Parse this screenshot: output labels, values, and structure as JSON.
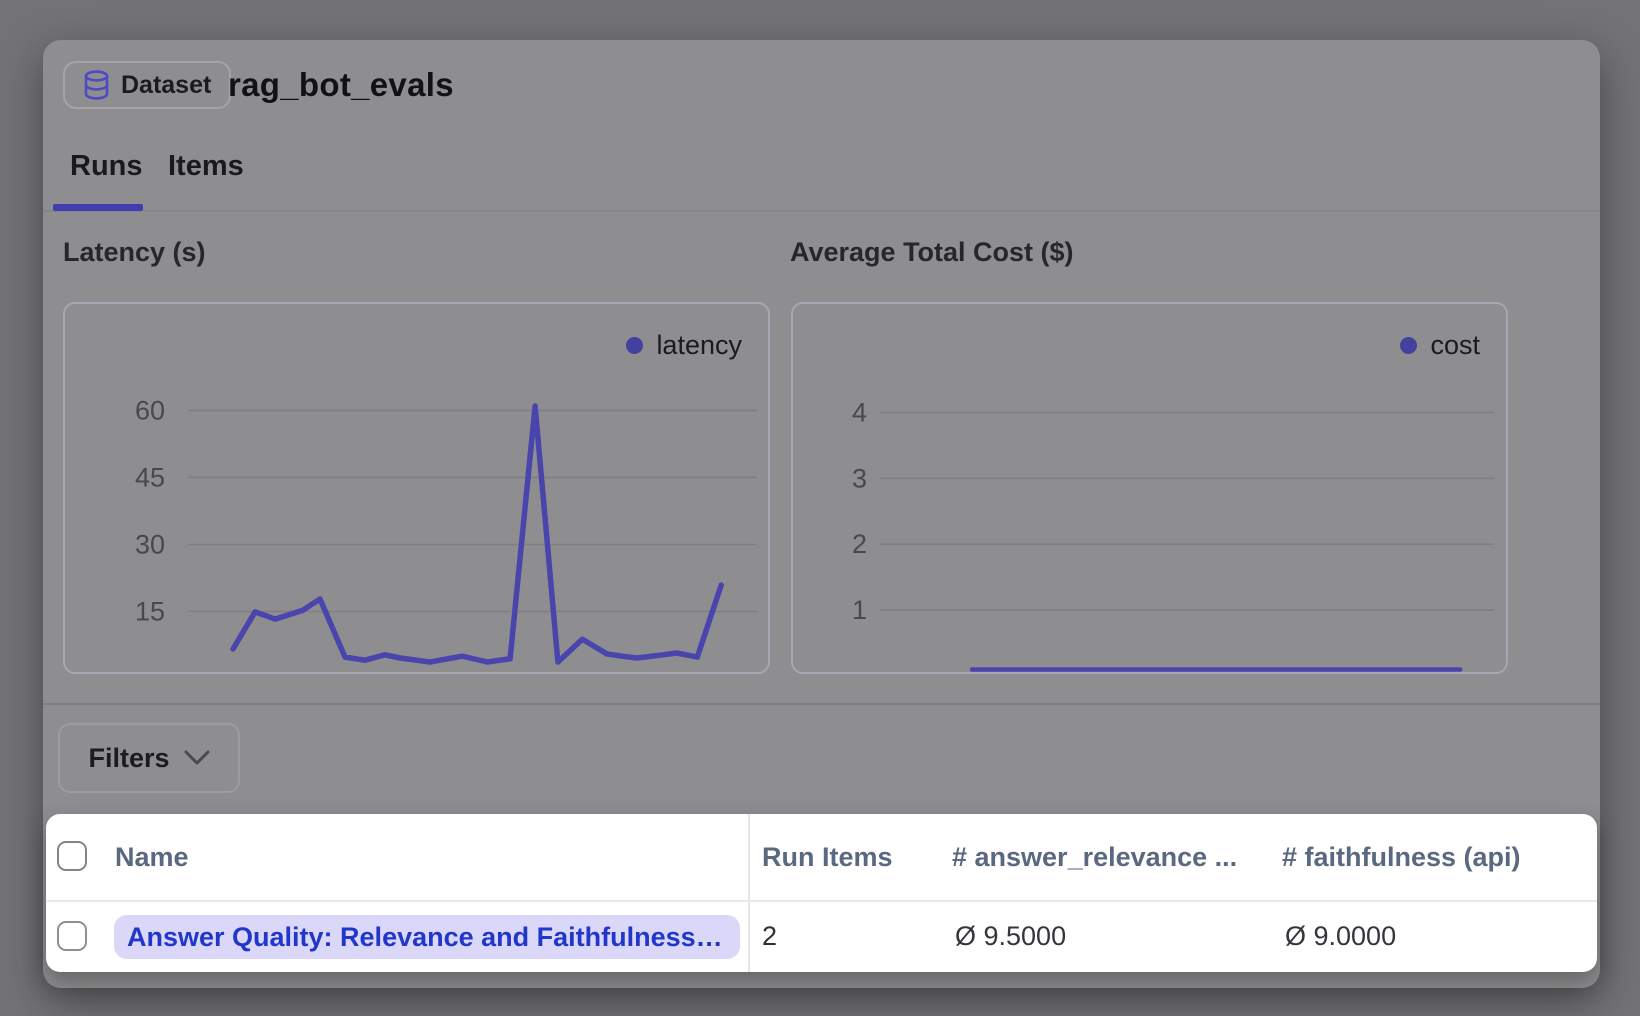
{
  "header": {
    "badge": {
      "label": "Dataset",
      "icon": "database-icon"
    },
    "title": "rag_bot_evals"
  },
  "tabs": [
    {
      "label": "Runs",
      "active": true
    },
    {
      "label": "Items",
      "active": false
    }
  ],
  "filters": {
    "label": "Filters",
    "icon": "chevron-down-icon"
  },
  "table": {
    "columns": [
      "Name",
      "Run Items",
      "# answer_relevance ...",
      "# faithfulness (api)"
    ],
    "rows": [
      {
        "name": "Answer Quality: Relevance and Faithfulness - ...",
        "run_items": "2",
        "answer_relevance": "Ø 9.5000",
        "faithfulness": "Ø 9.0000"
      }
    ]
  },
  "colors": {
    "accent_indigo": "#413daf",
    "line_indigo": "#4945ad",
    "legend_dot": "#43409f",
    "gridline": "#7f7f83",
    "tick_label": "#48484d",
    "link_blue": "#2137c9",
    "pill_bg": "#dbd7f8",
    "card_bg": "#8e8e90",
    "page_bg": "#737376"
  },
  "chart_data": [
    {
      "type": "line",
      "title": "Latency (s)",
      "xlabel": "",
      "ylabel": "",
      "yticks": [
        15,
        30,
        45,
        60
      ],
      "ylim": [
        0,
        84
      ],
      "grid": true,
      "legend_position": "top-right",
      "series": [
        {
          "name": "latency",
          "color": "#4945ad",
          "x_frac": [
            0.079,
            0.118,
            0.153,
            0.202,
            0.232,
            0.276,
            0.311,
            0.346,
            0.373,
            0.425,
            0.482,
            0.526,
            0.566,
            0.61,
            0.65,
            0.693,
            0.736,
            0.763,
            0.789,
            0.835,
            0.859,
            0.895,
            0.937
          ],
          "values": [
            6.6,
            14.9,
            13.3,
            15.3,
            17.8,
            4.8,
            4.1,
            5.3,
            4.6,
            3.7,
            5.0,
            3.7,
            4.4,
            61.0,
            3.7,
            8.8,
            5.5,
            5.0,
            4.6,
            5.3,
            5.7,
            4.8,
            20.9
          ]
        }
      ]
    },
    {
      "type": "line",
      "title": "Average Total Cost ($)",
      "xlabel": "",
      "ylabel": "",
      "yticks": [
        1,
        2,
        3,
        4
      ],
      "ylim": [
        0,
        5.6
      ],
      "grid": true,
      "legend_position": "top-right",
      "series": [
        {
          "name": "cost",
          "color": "#4945ad",
          "x_frac": [
            0.15,
            0.25,
            0.35,
            0.45,
            0.55,
            0.65,
            0.75,
            0.85,
            0.945
          ],
          "values": [
            0.02,
            0.02,
            0.02,
            0.02,
            0.02,
            0.02,
            0.02,
            0.02,
            0.02
          ]
        }
      ]
    }
  ]
}
